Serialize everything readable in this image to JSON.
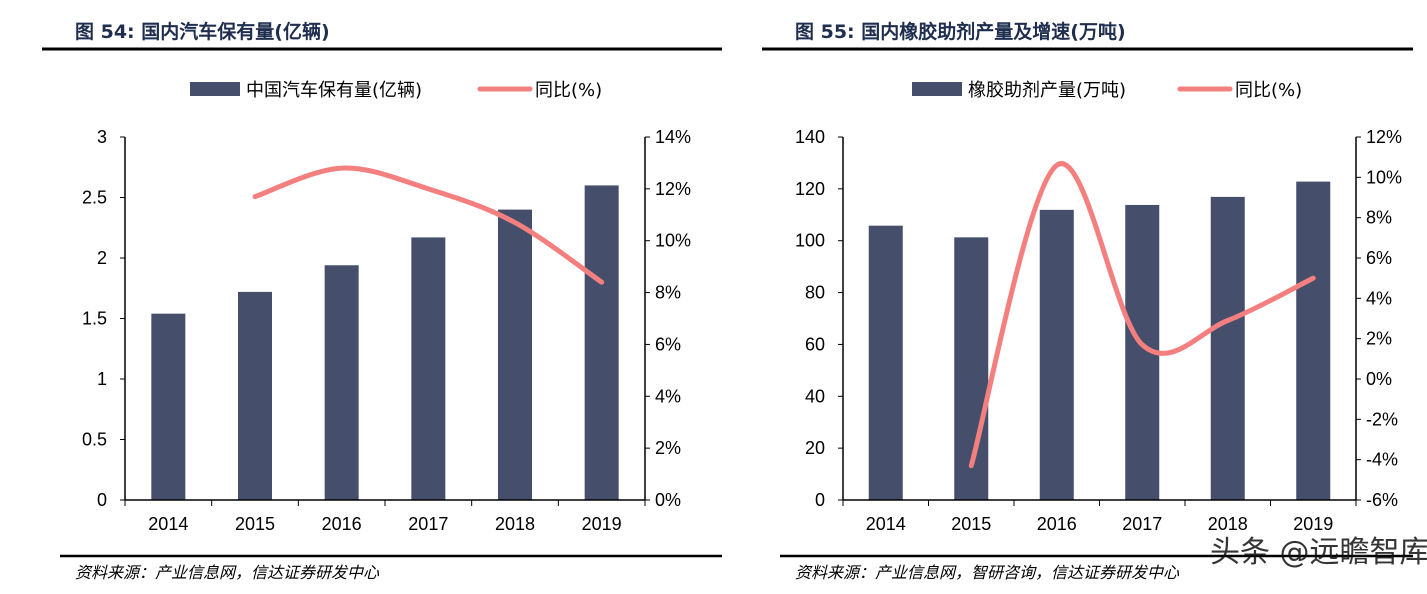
{
  "colors": {
    "bar": "#454f6c",
    "line": "#f47f7f",
    "title": "#1f2d4e"
  },
  "watermark": "头条 @远瞻智库",
  "chart_data": [
    {
      "type": "bar+line",
      "title": "图 54:  国内汽车保有量(亿辆)",
      "source": "资料来源：产业信息网，信达证券研发中心",
      "categories": [
        "2014",
        "2015",
        "2016",
        "2017",
        "2018",
        "2019"
      ],
      "series": [
        {
          "name": "中国汽车保有量(亿辆)",
          "type": "bar",
          "axis": "left",
          "values": [
            1.54,
            1.72,
            1.94,
            2.17,
            2.4,
            2.6
          ]
        },
        {
          "name": "同比(%)",
          "type": "line",
          "axis": "right",
          "values": [
            null,
            11.7,
            12.8,
            12.0,
            10.7,
            8.4
          ]
        }
      ],
      "left_axis": {
        "ylim": [
          0,
          3
        ],
        "ticks": [
          "0",
          "0.5",
          "1",
          "1.5",
          "2",
          "2.5",
          "3"
        ]
      },
      "right_axis": {
        "ylim": [
          0,
          14
        ],
        "ticks": [
          "0%",
          "2%",
          "4%",
          "6%",
          "8%",
          "10%",
          "12%",
          "14%"
        ]
      },
      "legend": "top",
      "grid": false
    },
    {
      "type": "bar+line",
      "title": "图 55:  国内橡胶助剂产量及增速(万吨)",
      "source": "资料来源：产业信息网，智研咨询，信达证券研发中心",
      "categories": [
        "2014",
        "2015",
        "2016",
        "2017",
        "2018",
        "2019"
      ],
      "series": [
        {
          "name": "橡胶助剂产量(万吨)",
          "type": "bar",
          "axis": "left",
          "values": [
            105.8,
            101.3,
            111.9,
            113.8,
            116.9,
            122.8
          ]
        },
        {
          "name": "同比(%)",
          "type": "line",
          "axis": "right",
          "values": [
            null,
            -4.3,
            10.6,
            1.7,
            2.9,
            5.0
          ]
        }
      ],
      "left_axis": {
        "ylim": [
          0,
          140
        ],
        "ticks": [
          "0",
          "20",
          "40",
          "60",
          "80",
          "100",
          "120",
          "140"
        ]
      },
      "right_axis": {
        "ylim": [
          -6,
          12
        ],
        "ticks": [
          "-6%",
          "-4%",
          "-2%",
          "0%",
          "2%",
          "4%",
          "6%",
          "8%",
          "10%",
          "12%"
        ]
      },
      "legend": "top",
      "grid": false
    }
  ]
}
